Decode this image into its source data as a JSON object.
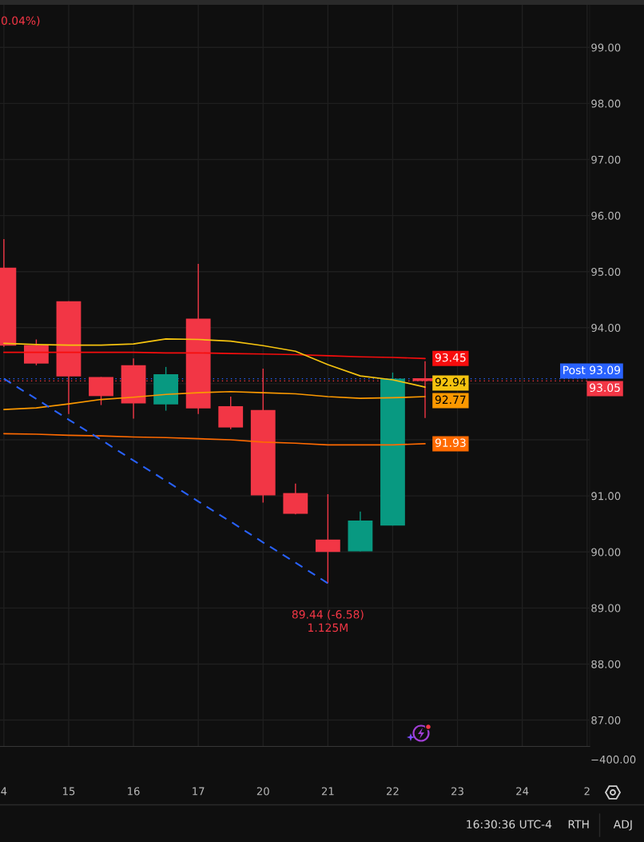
{
  "chart_data": {
    "type": "candlestick",
    "categories": [
      "4",
      null,
      "15",
      null,
      "16",
      null,
      "17",
      null,
      "20",
      null,
      "21",
      null,
      "22",
      null,
      "23",
      null,
      "24",
      null,
      "2"
    ],
    "ohlc": [
      [
        95.07,
        95.58,
        93.66,
        93.68
      ],
      [
        93.69,
        93.79,
        93.33,
        93.36
      ],
      [
        94.47,
        94.47,
        92.46,
        93.13
      ],
      [
        93.12,
        93.12,
        92.62,
        92.78
      ],
      [
        93.33,
        93.45,
        92.38,
        92.65
      ],
      [
        92.63,
        93.3,
        92.52,
        93.17
      ],
      [
        94.16,
        95.14,
        92.46,
        92.56
      ],
      [
        92.6,
        92.77,
        92.19,
        92.22
      ],
      [
        92.53,
        93.27,
        90.88,
        91.01
      ],
      [
        91.05,
        91.22,
        90.67,
        90.68
      ],
      [
        90.22,
        91.03,
        89.44,
        90.0
      ],
      [
        90.01,
        90.72,
        90.01,
        90.56
      ],
      [
        90.47,
        93.2,
        90.47,
        93.09
      ],
      [
        93.1,
        93.4,
        92.39,
        93.05
      ],
      null,
      null,
      null,
      null,
      null
    ],
    "colors": [
      "#f23645",
      "#f23645",
      "#f23645",
      "#f23645",
      "#f23645",
      "#089981",
      "#f23645",
      "#f23645",
      "#f23645",
      "#f23645",
      "#f23645",
      "#089981",
      "#089981",
      "#f23645",
      null,
      null,
      null,
      null,
      null
    ],
    "series": [
      {
        "type": "line",
        "color": "#f70d0d",
        "values": [
          93.56,
          93.56,
          93.56,
          93.56,
          93.56,
          93.55,
          93.55,
          93.54,
          93.53,
          93.52,
          93.5,
          93.48,
          93.47,
          93.45,
          null,
          null,
          null,
          null,
          null
        ],
        "value_labels": [
          null,
          null,
          null,
          null,
          null,
          null,
          null,
          null,
          null,
          null,
          null,
          null,
          null,
          "93.45",
          null,
          null,
          null,
          null,
          null
        ]
      },
      {
        "type": "line",
        "color": "#f5c30f",
        "values": [
          93.72,
          93.7,
          93.69,
          93.69,
          93.71,
          93.8,
          93.79,
          93.76,
          93.68,
          93.58,
          93.34,
          93.14,
          93.07,
          92.94,
          null,
          null,
          null,
          null,
          null
        ],
        "value_labels": [
          null,
          null,
          null,
          null,
          null,
          null,
          null,
          null,
          null,
          null,
          null,
          null,
          null,
          "92.94",
          null,
          null,
          null,
          null,
          null
        ]
      },
      {
        "type": "line",
        "color": "#fb9800",
        "values": [
          92.54,
          92.57,
          92.64,
          92.72,
          92.76,
          92.81,
          92.84,
          92.86,
          92.84,
          92.82,
          92.77,
          92.74,
          92.75,
          92.77,
          null,
          null,
          null,
          null,
          null
        ],
        "value_labels": [
          null,
          null,
          null,
          null,
          null,
          null,
          null,
          null,
          null,
          null,
          null,
          null,
          null,
          "92.77",
          null,
          null,
          null,
          null,
          null
        ]
      },
      {
        "type": "line",
        "color": "#ff6a00",
        "values": [
          92.11,
          92.1,
          92.08,
          92.07,
          92.05,
          92.04,
          92.02,
          92.0,
          91.96,
          91.94,
          91.91,
          91.91,
          91.91,
          91.93,
          null,
          null,
          null,
          null,
          null
        ],
        "value_labels": [
          null,
          null,
          null,
          null,
          null,
          null,
          null,
          null,
          null,
          null,
          null,
          null,
          null,
          "91.93",
          null,
          null,
          null,
          null,
          null
        ]
      },
      {
        "type": "line",
        "color": "#2962ff",
        "line_style": "dashed",
        "values": [
          93.09,
          92.73,
          92.36,
          92.0,
          91.63,
          91.27,
          90.9,
          90.54,
          90.17,
          89.81,
          89.44,
          null,
          null,
          null,
          null,
          null,
          null,
          null,
          null
        ]
      }
    ],
    "ylim": [
      86.53,
      99.76
    ],
    "yticks": [
      {
        "value": 87,
        "label": "87.00"
      },
      {
        "value": 88,
        "label": "88.00"
      },
      {
        "value": 89,
        "label": "89.00"
      },
      {
        "value": 90,
        "label": "90.00"
      },
      {
        "value": 91,
        "label": "91.00"
      },
      {
        "value": 92,
        "label": null
      },
      {
        "value": 93,
        "label": null
      },
      {
        "value": 94,
        "label": "94.00"
      },
      {
        "value": 95,
        "label": "95.00"
      },
      {
        "value": 96,
        "label": "96.00"
      },
      {
        "value": 97,
        "label": "97.00"
      },
      {
        "value": 98,
        "label": "98.00"
      },
      {
        "value": 99,
        "label": "99.00"
      }
    ],
    "grid": true,
    "ref_lines": [
      {
        "axis": "y",
        "value": 93.09,
        "label": "Post 93.09",
        "color": "#2962ff",
        "line_style": "dotted"
      },
      {
        "axis": "y",
        "value": 93.05,
        "label": "93.05",
        "color": "#f23645",
        "line_style": "dotted"
      }
    ],
    "annotations": [
      "0.04%)",
      {
        "text": "89.44 (-6.58)\n1.125M",
        "x": "21",
        "y": 89.44
      },
      "−400.00",
      "16:30:36 UTC-4",
      "RTH",
      "ADJ"
    ]
  }
}
